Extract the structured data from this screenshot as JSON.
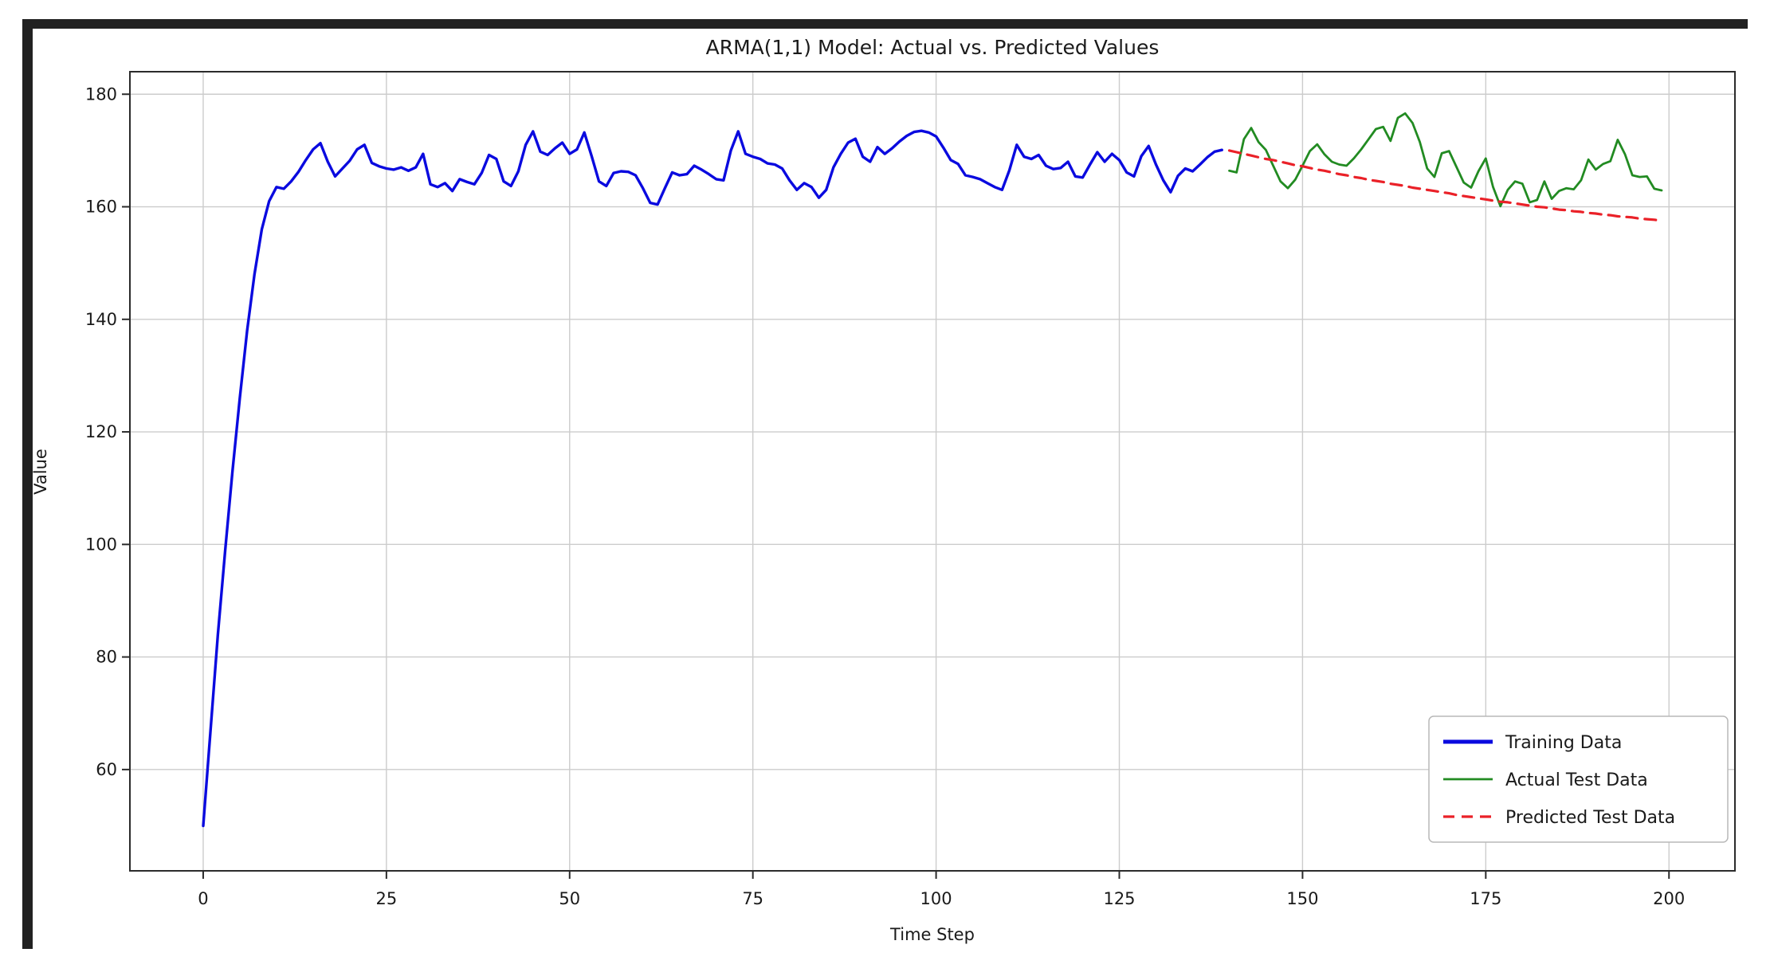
{
  "window": {
    "frame_color": "#212121",
    "background_color": "#ffffff"
  },
  "chart_data": {
    "type": "line",
    "title": "ARMA(1,1) Model: Actual vs. Predicted Values",
    "xlabel": "Time Step",
    "ylabel": "Value",
    "xlim": [
      -10,
      209
    ],
    "ylim": [
      42,
      184
    ],
    "xticks": [
      0,
      25,
      50,
      75,
      100,
      125,
      150,
      175,
      200
    ],
    "yticks": [
      60,
      80,
      100,
      120,
      140,
      160,
      180
    ],
    "grid": true,
    "grid_color": "#cccccc",
    "spine_color": "#2b2b2b",
    "text_color": "#1a1a1a",
    "legend_position": "lower right",
    "series": [
      {
        "name": "Training Data",
        "color": "#0a0adf",
        "style": "solid",
        "width": 3.4,
        "x_start": 0,
        "x_step": 1,
        "values": [
          50.0,
          67.0,
          84.0,
          99.0,
          113.0,
          126.0,
          138.0,
          148.0,
          156.0,
          161.0,
          163.5,
          163.2,
          164.5,
          166.2,
          168.3,
          170.2,
          171.3,
          168.0,
          165.4,
          166.8,
          168.2,
          170.2,
          171.0,
          167.8,
          167.2,
          166.8,
          166.6,
          167.0,
          166.4,
          167.0,
          169.4,
          164.0,
          163.5,
          164.2,
          162.8,
          164.9,
          164.4,
          164.0,
          166.0,
          169.2,
          168.5,
          164.5,
          163.7,
          166.3,
          171.0,
          173.4,
          169.8,
          169.2,
          170.4,
          171.4,
          169.4,
          170.2,
          173.2,
          169.0,
          164.5,
          163.7,
          166.0,
          166.3,
          166.2,
          165.6,
          163.3,
          160.7,
          160.4,
          163.3,
          166.1,
          165.6,
          165.8,
          167.3,
          166.6,
          165.8,
          164.9,
          164.7,
          170.0,
          173.4,
          169.4,
          168.9,
          168.5,
          167.7,
          167.5,
          166.8,
          164.7,
          163.0,
          164.2,
          163.5,
          161.6,
          163.0,
          167.0,
          169.4,
          171.4,
          172.1,
          168.9,
          168.0,
          170.6,
          169.4,
          170.4,
          171.6,
          172.6,
          173.3,
          173.5,
          173.2,
          172.5,
          170.5,
          168.3,
          167.6,
          165.6,
          165.3,
          164.9,
          164.2,
          163.5,
          163.0,
          166.5,
          171.0,
          168.9,
          168.5,
          169.2,
          167.3,
          166.7,
          166.9,
          168.0,
          165.4,
          165.2,
          167.5,
          169.7,
          168.0,
          169.4,
          168.3,
          166.1,
          165.4,
          169.0,
          170.8,
          167.5,
          164.7,
          162.6,
          165.5,
          166.8,
          166.3,
          167.5,
          168.8,
          169.8,
          170.1
        ]
      },
      {
        "name": "Actual Test Data",
        "color": "#228b22",
        "style": "solid",
        "width": 2.8,
        "x_start": 140,
        "x_step": 1,
        "values": [
          166.4,
          166.1,
          172.0,
          174.0,
          171.5,
          170.1,
          167.3,
          164.5,
          163.3,
          164.8,
          167.3,
          169.9,
          171.1,
          169.3,
          168.0,
          167.5,
          167.3,
          168.6,
          170.2,
          172.0,
          173.8,
          174.2,
          171.7,
          175.8,
          176.6,
          174.9,
          171.5,
          166.8,
          165.3,
          169.5,
          169.9,
          167.1,
          164.3,
          163.4,
          166.3,
          168.6,
          163.5,
          160.1,
          163.0,
          164.5,
          164.1,
          160.8,
          161.2,
          164.5,
          161.4,
          162.8,
          163.3,
          163.1,
          164.7,
          168.4,
          166.6,
          167.6,
          168.1,
          171.9,
          169.3,
          165.6,
          165.3,
          165.4,
          163.2,
          162.9
        ]
      },
      {
        "name": "Predicted Test Data",
        "color": "#ea2128",
        "style": "dashed",
        "width": 3.2,
        "x_start": 140,
        "x_step": 1,
        "values": [
          170.0,
          169.7,
          169.4,
          169.1,
          168.8,
          168.5,
          168.3,
          168.0,
          167.7,
          167.4,
          167.2,
          166.9,
          166.6,
          166.4,
          166.1,
          165.8,
          165.6,
          165.3,
          165.1,
          164.8,
          164.6,
          164.4,
          164.1,
          163.9,
          163.7,
          163.4,
          163.2,
          163.0,
          162.8,
          162.6,
          162.4,
          162.1,
          161.9,
          161.7,
          161.5,
          161.3,
          161.1,
          160.9,
          160.8,
          160.6,
          160.4,
          160.2,
          160.0,
          159.9,
          159.7,
          159.5,
          159.4,
          159.2,
          159.1,
          158.9,
          158.8,
          158.6,
          158.5,
          158.3,
          158.2,
          158.1,
          157.9,
          157.8,
          157.7,
          157.5
        ]
      }
    ]
  }
}
